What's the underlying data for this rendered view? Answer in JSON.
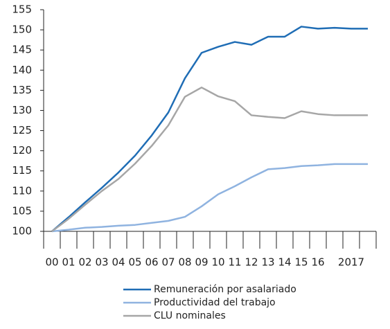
{
  "chart_data": {
    "type": "line",
    "categories": [
      "00",
      "01",
      "02",
      "03",
      "04",
      "05",
      "06",
      "07",
      "08",
      "09",
      "10",
      "11",
      "12",
      "13",
      "14",
      "15",
      "16",
      null,
      "2017",
      null
    ],
    "ylim": [
      100,
      155
    ],
    "yticks": [
      100,
      105,
      110,
      115,
      120,
      125,
      130,
      135,
      140,
      145,
      150,
      155
    ],
    "series": [
      {
        "name": "Remuneración por asalariado",
        "color": "#1f6db5",
        "values": [
          100,
          103.5,
          107.2,
          110.8,
          114.6,
          118.8,
          123.8,
          129.5,
          138,
          144.3,
          145.8,
          147,
          146.3,
          148.3,
          148.3,
          150.8,
          150.3,
          150.5,
          150.3,
          150.3
        ]
      },
      {
        "name": "Productividad del trabajo",
        "color": "#8fb3e0",
        "values": [
          100,
          100.4,
          100.9,
          101.1,
          101.4,
          101.6,
          102.1,
          102.6,
          103.6,
          106.2,
          109.2,
          111.2,
          113.4,
          115.4,
          115.7,
          116.2,
          116.4,
          116.7,
          116.7,
          116.7
        ]
      },
      {
        "name": "CLU nominales",
        "color": "#a6a6a6",
        "values": [
          100,
          103.1,
          106.6,
          110,
          113,
          116.8,
          121.2,
          126.3,
          133.4,
          135.7,
          133.5,
          132.3,
          128.8,
          128.4,
          128.1,
          129.8,
          129.1,
          128.8,
          128.8,
          128.8
        ]
      }
    ]
  }
}
